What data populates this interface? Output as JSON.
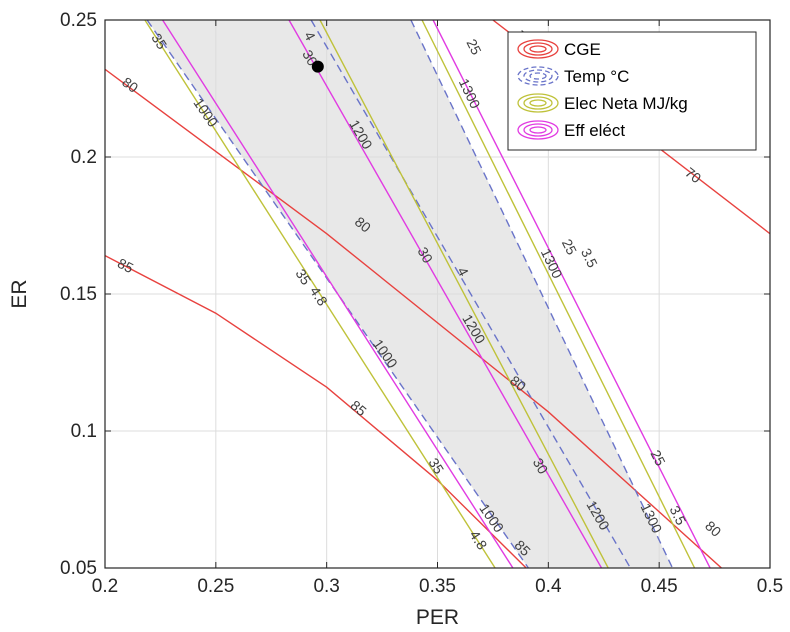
{
  "chart_data": {
    "type": "contour",
    "xlabel": "PER",
    "ylabel": "ER",
    "xlim": [
      0.2,
      0.5
    ],
    "ylim": [
      0.05,
      0.25
    ],
    "xticks": [
      "0.2",
      "0.25",
      "0.3",
      "0.35",
      "0.4",
      "0.45",
      "0.5"
    ],
    "yticks": [
      "0.05",
      "0.1",
      "0.15",
      "0.2",
      "0.25"
    ],
    "grid": true,
    "legend_position": "top-right",
    "legend": [
      {
        "label": "CGE",
        "color": "#e8423f",
        "style": "solid"
      },
      {
        "label": "Temp °C",
        "color": "#6a74c9",
        "style": "dashed"
      },
      {
        "label": "Elec Neta MJ/kg",
        "color": "#bfc23a",
        "style": "solid"
      },
      {
        "label": "Eff eléct",
        "color": "#e13be2",
        "style": "solid"
      }
    ],
    "feasible_region": {
      "color": "#e8e8e8",
      "between": [
        "Temp 1000",
        "Temp 1300"
      ]
    },
    "series": [
      {
        "name": "CGE",
        "level": "70",
        "color": "#e8423f",
        "points": [
          [
            0.375,
            0.25
          ],
          [
            0.5,
            0.172
          ]
        ],
        "labels": [
          {
            "text": "70",
            "at": [
              0.389,
              0.243
            ]
          },
          {
            "text": "70",
            "at": [
              0.465,
              0.193
            ]
          }
        ]
      },
      {
        "name": "CGE",
        "level": "80",
        "color": "#e8423f",
        "points": [
          [
            0.2,
            0.232
          ],
          [
            0.3,
            0.172
          ],
          [
            0.4,
            0.107
          ],
          [
            0.5,
            0.034
          ]
        ],
        "labels": [
          {
            "text": "80",
            "at": [
              0.211,
              0.226
            ]
          },
          {
            "text": "80",
            "at": [
              0.316,
              0.175
            ]
          },
          {
            "text": "80",
            "at": [
              0.386,
              0.117
            ]
          },
          {
            "text": "80",
            "at": [
              0.474,
              0.064
            ]
          }
        ]
      },
      {
        "name": "CGE",
        "level": "85",
        "color": "#e8423f",
        "points": [
          [
            0.2,
            0.164
          ],
          [
            0.25,
            0.143
          ],
          [
            0.3,
            0.116
          ],
          [
            0.35,
            0.082
          ],
          [
            0.39,
            0.05
          ]
        ],
        "labels": [
          {
            "text": "85",
            "at": [
              0.209,
              0.16
            ]
          },
          {
            "text": "85",
            "at": [
              0.314,
              0.108
            ]
          },
          {
            "text": "85",
            "at": [
              0.388,
              0.057
            ]
          }
        ]
      },
      {
        "name": "Temp °C",
        "level": "1000",
        "color": "#6a74c9",
        "points": [
          [
            0.219,
            0.25
          ],
          [
            0.391,
            0.05
          ]
        ],
        "labels": [
          {
            "text": "1000",
            "at": [
              0.245,
              0.216
            ]
          },
          {
            "text": "1000",
            "at": [
              0.326,
              0.128
            ]
          },
          {
            "text": "1000",
            "at": [
              0.374,
              0.068
            ]
          }
        ]
      },
      {
        "name": "Temp °C",
        "level": "1200",
        "color": "#6a74c9",
        "points": [
          [
            0.293,
            0.25
          ],
          [
            0.437,
            0.05
          ]
        ],
        "labels": [
          {
            "text": "1200",
            "at": [
              0.315,
              0.208
            ]
          },
          {
            "text": "1200",
            "at": [
              0.366,
              0.137
            ]
          },
          {
            "text": "1200",
            "at": [
              0.422,
              0.069
            ]
          }
        ]
      },
      {
        "name": "Temp °C",
        "level": "1300",
        "color": "#6a74c9",
        "points": [
          [
            0.338,
            0.25
          ],
          [
            0.456,
            0.05
          ]
        ],
        "labels": [
          {
            "text": "1300",
            "at": [
              0.364,
              0.223
            ]
          },
          {
            "text": "1300",
            "at": [
              0.401,
              0.161
            ]
          },
          {
            "text": "1300",
            "at": [
              0.446,
              0.068
            ]
          }
        ]
      }
    ],
    "elec_neta": [
      {
        "level": "4.8",
        "color": "#bfc23a",
        "points": [
          [
            0.218,
            0.25
          ],
          [
            0.376,
            0.05
          ]
        ],
        "labels": [
          {
            "text": "4.8",
            "at": [
              0.296,
              0.149
            ]
          },
          {
            "text": "4.8",
            "at": [
              0.368,
              0.06
            ]
          }
        ]
      },
      {
        "level": "4",
        "color": "#bfc23a",
        "points": [
          [
            0.297,
            0.25
          ],
          [
            0.427,
            0.05
          ]
        ],
        "labels": [
          {
            "text": "4",
            "at": [
              0.292,
              0.244
            ]
          },
          {
            "text": "4",
            "at": [
              0.361,
              0.158
            ]
          }
        ]
      },
      {
        "level": "3.5",
        "color": "#bfc23a",
        "points": [
          [
            0.343,
            0.25
          ],
          [
            0.466,
            0.05
          ]
        ],
        "labels": [
          {
            "text": "3.5",
            "at": [
              0.418,
              0.163
            ]
          },
          {
            "text": "3.5",
            "at": [
              0.458,
              0.069
            ]
          }
        ]
      }
    ],
    "eff_electrica": [
      {
        "level": "35",
        "color": "#e13be2",
        "points": [
          [
            0.226,
            0.25
          ],
          [
            0.384,
            0.05
          ]
        ],
        "labels": [
          {
            "text": "35",
            "at": [
              0.224,
              0.242
            ]
          },
          {
            "text": "35",
            "at": [
              0.289,
              0.156
            ]
          },
          {
            "text": "35",
            "at": [
              0.349,
              0.087
            ]
          }
        ]
      },
      {
        "level": "30",
        "color": "#e13be2",
        "points": [
          [
            0.283,
            0.25
          ],
          [
            0.424,
            0.05
          ]
        ],
        "labels": [
          {
            "text": "30",
            "at": [
              0.292,
              0.236
            ]
          },
          {
            "text": "30",
            "at": [
              0.344,
              0.164
            ]
          },
          {
            "text": "30",
            "at": [
              0.396,
              0.087
            ]
          }
        ]
      },
      {
        "level": "25",
        "color": "#e13be2",
        "points": [
          [
            0.348,
            0.25
          ],
          [
            0.473,
            0.05
          ]
        ],
        "labels": [
          {
            "text": "25",
            "at": [
              0.366,
              0.24
            ]
          },
          {
            "text": "25",
            "at": [
              0.409,
              0.167
            ]
          },
          {
            "text": "25",
            "at": [
              0.449,
              0.09
            ]
          }
        ]
      }
    ],
    "marker": {
      "x": 0.296,
      "y": 0.233,
      "color": "#000000"
    }
  }
}
